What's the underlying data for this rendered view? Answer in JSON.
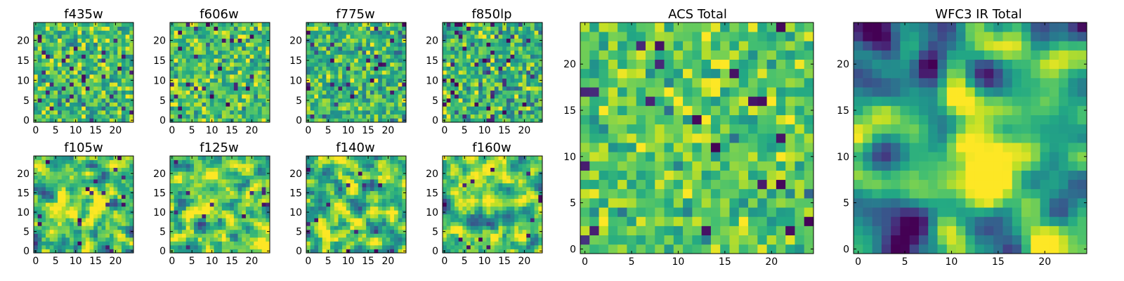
{
  "figure": {
    "background": "#ffffff",
    "colormap": "viridis",
    "colormap_stops": [
      "#440154",
      "#482475",
      "#414487",
      "#355f8d",
      "#2a788e",
      "#21918c",
      "#22a884",
      "#44bf70",
      "#7ad151",
      "#bddf26",
      "#fde725"
    ]
  },
  "chart_data": [
    {
      "type": "heatmap",
      "title": "f435w",
      "grid_size": [
        25,
        25
      ],
      "xlim": [
        -0.5,
        24.5
      ],
      "ylim": [
        -0.5,
        24.5
      ],
      "xticks": [
        "0",
        "5",
        "10",
        "15",
        "20"
      ],
      "yticks": [
        "0",
        "5",
        "10",
        "15",
        "20"
      ],
      "seed": 11,
      "smoothing": 0,
      "mean": 0.7,
      "spread": 0.16,
      "dark_fraction": 0.05,
      "bright_blob": null,
      "dark_blobs": [],
      "colorbar": false,
      "grid": false
    },
    {
      "type": "heatmap",
      "title": "f606w",
      "grid_size": [
        25,
        25
      ],
      "xlim": [
        -0.5,
        24.5
      ],
      "ylim": [
        -0.5,
        24.5
      ],
      "xticks": [
        "0",
        "5",
        "10",
        "15",
        "20"
      ],
      "yticks": [
        "0",
        "5",
        "10",
        "15",
        "20"
      ],
      "seed": 23,
      "smoothing": 0,
      "mean": 0.72,
      "spread": 0.15,
      "dark_fraction": 0.04,
      "bright_blob": null,
      "dark_blobs": [],
      "colorbar": false,
      "grid": false
    },
    {
      "type": "heatmap",
      "title": "f775w",
      "grid_size": [
        25,
        25
      ],
      "xlim": [
        -0.5,
        24.5
      ],
      "ylim": [
        -0.5,
        24.5
      ],
      "xticks": [
        "0",
        "5",
        "10",
        "15",
        "20"
      ],
      "yticks": [
        "0",
        "5",
        "10",
        "15",
        "20"
      ],
      "seed": 37,
      "smoothing": 0,
      "mean": 0.66,
      "spread": 0.16,
      "dark_fraction": 0.05,
      "bright_blob": null,
      "dark_blobs": [],
      "colorbar": false,
      "grid": false
    },
    {
      "type": "heatmap",
      "title": "f850lp",
      "grid_size": [
        25,
        25
      ],
      "xlim": [
        -0.5,
        24.5
      ],
      "ylim": [
        -0.5,
        24.5
      ],
      "xticks": [
        "0",
        "5",
        "10",
        "15",
        "20"
      ],
      "yticks": [
        "0",
        "5",
        "10",
        "15",
        "20"
      ],
      "seed": 41,
      "smoothing": 0,
      "mean": 0.66,
      "spread": 0.17,
      "dark_fraction": 0.05,
      "bright_blob": null,
      "dark_blobs": [],
      "colorbar": false,
      "grid": false
    },
    {
      "type": "heatmap",
      "title": "f105w",
      "grid_size": [
        25,
        25
      ],
      "xlim": [
        -0.5,
        24.5
      ],
      "ylim": [
        -0.5,
        24.5
      ],
      "xticks": [
        "0",
        "5",
        "10",
        "15",
        "20"
      ],
      "yticks": [
        "0",
        "5",
        "10",
        "15",
        "20"
      ],
      "seed": 53,
      "smoothing": 1,
      "mean": 0.68,
      "spread": 0.18,
      "dark_fraction": 0.02,
      "bright_blob": [
        12,
        12,
        6,
        0.15
      ],
      "dark_blobs": [],
      "colorbar": false,
      "grid": false
    },
    {
      "type": "heatmap",
      "title": "f125w",
      "grid_size": [
        25,
        25
      ],
      "xlim": [
        -0.5,
        24.5
      ],
      "ylim": [
        -0.5,
        24.5
      ],
      "xticks": [
        "0",
        "5",
        "10",
        "15",
        "20"
      ],
      "yticks": [
        "0",
        "5",
        "10",
        "15",
        "20"
      ],
      "seed": 67,
      "smoothing": 1,
      "mean": 0.7,
      "spread": 0.18,
      "dark_fraction": 0.02,
      "bright_blob": [
        14,
        8,
        6,
        0.12
      ],
      "dark_blobs": [],
      "colorbar": false,
      "grid": false
    },
    {
      "type": "heatmap",
      "title": "f140w",
      "grid_size": [
        25,
        25
      ],
      "xlim": [
        -0.5,
        24.5
      ],
      "ylim": [
        -0.5,
        24.5
      ],
      "xticks": [
        "0",
        "5",
        "10",
        "15",
        "20"
      ],
      "yticks": [
        "0",
        "5",
        "10",
        "15",
        "20"
      ],
      "seed": 79,
      "smoothing": 1,
      "mean": 0.68,
      "spread": 0.19,
      "dark_fraction": 0.02,
      "bright_blob": [
        12,
        8,
        5,
        0.1
      ],
      "dark_blobs": [],
      "colorbar": false,
      "grid": false
    },
    {
      "type": "heatmap",
      "title": "f160w",
      "grid_size": [
        25,
        25
      ],
      "xlim": [
        -0.5,
        24.5
      ],
      "ylim": [
        -0.5,
        24.5
      ],
      "xticks": [
        "0",
        "5",
        "10",
        "15",
        "20"
      ],
      "yticks": [
        "0",
        "5",
        "10",
        "15",
        "20"
      ],
      "seed": 83,
      "smoothing": 1,
      "mean": 0.67,
      "spread": 0.19,
      "dark_fraction": 0.02,
      "bright_blob": [
        12,
        13,
        5,
        0.12
      ],
      "dark_blobs": [],
      "colorbar": false,
      "grid": false
    },
    {
      "type": "heatmap",
      "title": "ACS Total",
      "grid_size": [
        25,
        25
      ],
      "xlim": [
        -0.5,
        24.5
      ],
      "ylim": [
        -0.5,
        24.5
      ],
      "xticks": [
        "0",
        "5",
        "10",
        "15",
        "20"
      ],
      "yticks": [
        "0",
        "5",
        "10",
        "15",
        "20"
      ],
      "seed": 97,
      "smoothing": 0,
      "mean": 0.72,
      "spread": 0.13,
      "dark_fraction": 0.04,
      "bright_blob": [
        11,
        11,
        5,
        0.08
      ],
      "dark_blobs": [],
      "colorbar": false,
      "grid": false
    },
    {
      "type": "heatmap",
      "title": "WFC3 IR Total",
      "grid_size": [
        25,
        25
      ],
      "xlim": [
        -0.5,
        24.5
      ],
      "ylim": [
        -0.5,
        24.5
      ],
      "xticks": [
        "0",
        "5",
        "10",
        "15",
        "20"
      ],
      "yticks": [
        "0",
        "5",
        "10",
        "15",
        "20"
      ],
      "seed": 101,
      "smoothing": 2,
      "mean": 0.58,
      "spread": 0.22,
      "dark_fraction": 0,
      "bright_blob": [
        13,
        8,
        6,
        0.32
      ],
      "dark_blobs": [
        [
          2,
          20,
          3,
          0.5
        ],
        [
          5,
          24,
          3,
          0.3
        ],
        [
          21,
          8,
          2,
          0.35
        ],
        [
          6,
          3,
          2,
          0.3
        ]
      ],
      "colorbar": false,
      "grid": false
    }
  ]
}
